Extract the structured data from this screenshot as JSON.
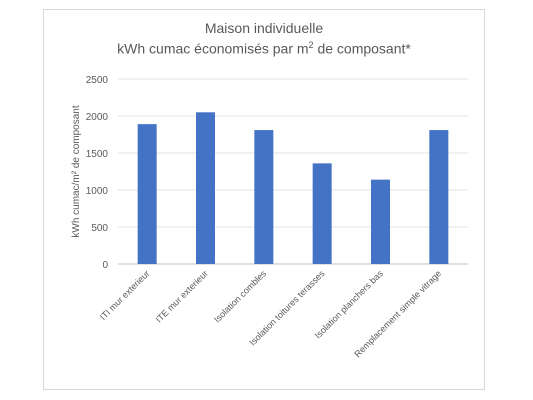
{
  "chart_data": {
    "type": "bar",
    "title": "Maison individuelle",
    "subtitle_prefix": "kWh cumac économisés par m",
    "subtitle_sup": "2",
    "subtitle_suffix": " de composant*",
    "ylabel": "kWh cumac/m² de composant",
    "ylim": [
      0,
      2500
    ],
    "yticks": [
      "0",
      "500",
      "1000",
      "1500",
      "2000",
      "2500"
    ],
    "categories": [
      "ITI mur exterieur",
      "ITE mur exterieur",
      "Isolation combles",
      "Isolation toitures terasses",
      "Isolation planchers bas",
      "Remplacement simple vitrage"
    ],
    "values": [
      1890,
      2050,
      1810,
      1360,
      1140,
      1810
    ],
    "grid": true,
    "bar_color": "#4472c4"
  }
}
